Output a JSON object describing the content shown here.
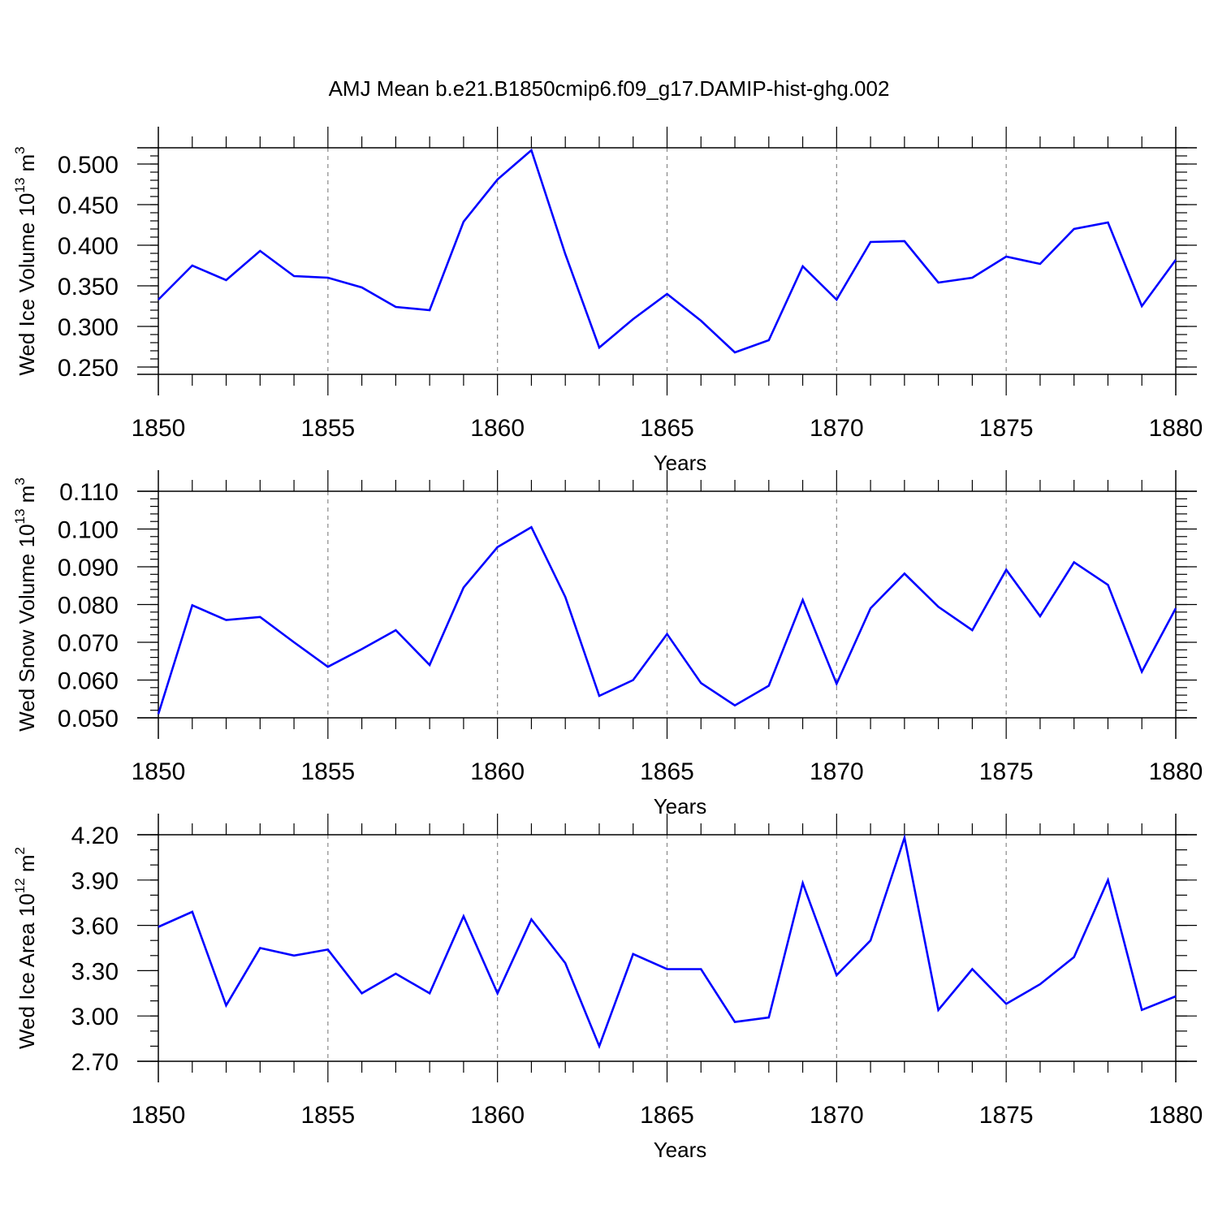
{
  "title": "AMJ Mean b.e21.B1850cmip6.f09_g17.DAMIP-hist-ghg.002",
  "colors": {
    "series": "#0000ff",
    "grid": "#888888",
    "axis": "#000000"
  },
  "chart_data": [
    {
      "type": "line",
      "xlabel": "Years",
      "ylabel": {
        "text": "Wed Ice Volume 10",
        "exp": "13",
        "unit": " m",
        "unit_exp": "3"
      },
      "x": [
        1850,
        1851,
        1852,
        1853,
        1854,
        1855,
        1856,
        1857,
        1858,
        1859,
        1860,
        1861,
        1862,
        1863,
        1864,
        1865,
        1866,
        1867,
        1868,
        1869,
        1870,
        1871,
        1872,
        1873,
        1874,
        1875,
        1876,
        1877,
        1878,
        1879,
        1880
      ],
      "values": [
        0.333,
        0.375,
        0.357,
        0.393,
        0.362,
        0.36,
        0.348,
        0.324,
        0.32,
        0.429,
        0.481,
        0.517,
        0.389,
        0.274,
        0.309,
        0.34,
        0.307,
        0.268,
        0.283,
        0.374,
        0.333,
        0.404,
        0.405,
        0.354,
        0.36,
        0.386,
        0.377,
        0.42,
        0.428,
        0.325,
        0.382
      ],
      "xlim": [
        1850,
        1880
      ],
      "ylim": [
        0.241,
        0.52
      ],
      "xticks": [
        "1850",
        "1855",
        "1860",
        "1865",
        "1870",
        "1875",
        "1880"
      ],
      "yticks": [
        "0.250",
        "0.300",
        "0.350",
        "0.400",
        "0.450",
        "0.500"
      ],
      "ytick_values": [
        0.25,
        0.3,
        0.35,
        0.4,
        0.45,
        0.5
      ],
      "yminor_step": 0.01,
      "grid": "vertical-dashed"
    },
    {
      "type": "line",
      "xlabel": "Years",
      "ylabel": {
        "text": "Wed Snow Volume 10",
        "exp": "13",
        "unit": " m",
        "unit_exp": "3"
      },
      "x": [
        1850,
        1851,
        1852,
        1853,
        1854,
        1855,
        1856,
        1857,
        1858,
        1859,
        1860,
        1861,
        1862,
        1863,
        1864,
        1865,
        1866,
        1867,
        1868,
        1869,
        1870,
        1871,
        1872,
        1873,
        1874,
        1875,
        1876,
        1877,
        1878,
        1879,
        1880
      ],
      "values": [
        0.051,
        0.0798,
        0.0759,
        0.0767,
        0.07,
        0.0635,
        0.0682,
        0.0732,
        0.064,
        0.0845,
        0.0952,
        0.1005,
        0.082,
        0.0558,
        0.06,
        0.0722,
        0.0592,
        0.0533,
        0.0585,
        0.0812,
        0.059,
        0.079,
        0.0882,
        0.0794,
        0.0732,
        0.0892,
        0.0769,
        0.0912,
        0.0852,
        0.0622,
        0.079
      ],
      "xlim": [
        1850,
        1880
      ],
      "ylim": [
        0.05,
        0.11
      ],
      "xticks": [
        "1850",
        "1855",
        "1860",
        "1865",
        "1870",
        "1875",
        "1880"
      ],
      "yticks": [
        "0.050",
        "0.060",
        "0.070",
        "0.080",
        "0.090",
        "0.100",
        "0.110"
      ],
      "ytick_values": [
        0.05,
        0.06,
        0.07,
        0.08,
        0.09,
        0.1,
        0.11
      ],
      "yminor_step": 0.002,
      "grid": "vertical-dashed"
    },
    {
      "type": "line",
      "xlabel": "Years",
      "ylabel": {
        "text": "Wed Ice Area 10",
        "exp": "12",
        "unit": " m",
        "unit_exp": "2"
      },
      "x": [
        1850,
        1851,
        1852,
        1853,
        1854,
        1855,
        1856,
        1857,
        1858,
        1859,
        1860,
        1861,
        1862,
        1863,
        1864,
        1865,
        1866,
        1867,
        1868,
        1869,
        1870,
        1871,
        1872,
        1873,
        1874,
        1875,
        1876,
        1877,
        1878,
        1879,
        1880
      ],
      "values": [
        3.59,
        3.69,
        3.07,
        3.45,
        3.4,
        3.44,
        3.15,
        3.28,
        3.15,
        3.66,
        3.15,
        3.64,
        3.35,
        2.8,
        3.41,
        3.31,
        3.31,
        2.96,
        2.99,
        3.88,
        3.27,
        3.5,
        4.18,
        3.04,
        3.31,
        3.08,
        3.21,
        3.39,
        3.9,
        3.04,
        3.13
      ],
      "xlim": [
        1850,
        1880
      ],
      "ylim": [
        2.7,
        4.2
      ],
      "xticks": [
        "1850",
        "1855",
        "1860",
        "1865",
        "1870",
        "1875",
        "1880"
      ],
      "yticks": [
        "2.70",
        "3.00",
        "3.30",
        "3.60",
        "3.90",
        "4.20"
      ],
      "ytick_values": [
        2.7,
        3.0,
        3.3,
        3.6,
        3.9,
        4.2
      ],
      "yminor_step": 0.1,
      "grid": "vertical-dashed"
    }
  ]
}
